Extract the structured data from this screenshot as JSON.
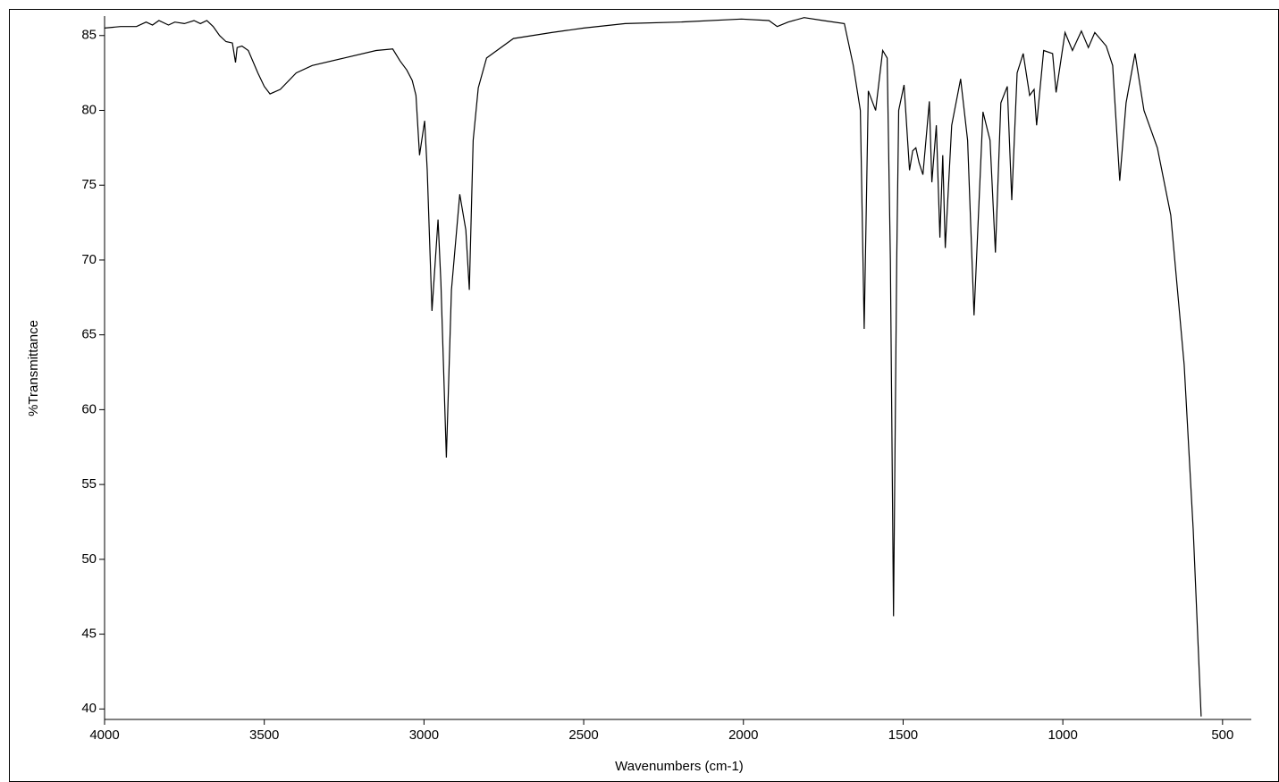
{
  "chart_data": {
    "type": "line",
    "x_label": "Wavenumbers (cm-1)",
    "y_label": "%Transmittance",
    "color": "#000000",
    "xlim": [
      4000,
      410
    ],
    "ylim": [
      39.3,
      86.3
    ],
    "xticks": [
      4000,
      3500,
      3000,
      2500,
      2000,
      1500,
      1000,
      500
    ],
    "yticks": [
      40,
      45,
      50,
      55,
      60,
      65,
      70,
      75,
      80,
      85
    ],
    "x": [
      4000,
      3950,
      3900,
      3870,
      3850,
      3830,
      3800,
      3780,
      3750,
      3720,
      3700,
      3680,
      3660,
      3640,
      3620,
      3600,
      3590,
      3585,
      3570,
      3550,
      3520,
      3500,
      3482,
      3450,
      3400,
      3350,
      3250,
      3150,
      3098,
      3075,
      3054,
      3037,
      3025,
      3014,
      2998,
      2990,
      2975,
      2956,
      2947,
      2930,
      2914,
      2888,
      2869,
      2858,
      2846,
      2830,
      2804,
      2720,
      2600,
      2500,
      2370,
      2200,
      2006,
      1920,
      1894,
      1860,
      1810,
      1750,
      1684,
      1656,
      1634,
      1622,
      1609,
      1595,
      1586,
      1564,
      1550,
      1540,
      1530,
      1520,
      1514,
      1497,
      1480,
      1470,
      1460,
      1450,
      1438,
      1418,
      1410,
      1396,
      1385,
      1376,
      1368,
      1348,
      1320,
      1298,
      1278,
      1250,
      1228,
      1211,
      1194,
      1174,
      1160,
      1143,
      1124,
      1104,
      1090,
      1082,
      1060,
      1032,
      1021,
      993,
      970,
      942,
      920,
      900,
      864,
      844,
      822,
      802,
      774,
      746,
      704,
      662,
      620,
      592,
      567
    ],
    "values": [
      85.5,
      85.6,
      85.6,
      85.9,
      85.7,
      86.0,
      85.7,
      85.9,
      85.8,
      86.0,
      85.8,
      86.0,
      85.6,
      85.0,
      84.6,
      84.5,
      83.2,
      84.2,
      84.3,
      84.0,
      82.5,
      81.6,
      81.1,
      81.4,
      82.5,
      83.0,
      83.5,
      84.0,
      84.1,
      83.3,
      82.7,
      82.0,
      81.0,
      77.0,
      79.3,
      76.0,
      66.6,
      72.7,
      68.5,
      56.8,
      68.0,
      74.4,
      72.0,
      68.0,
      78.0,
      81.5,
      83.5,
      84.8,
      85.2,
      85.5,
      85.8,
      85.9,
      86.1,
      86.0,
      85.6,
      85.9,
      86.2,
      86.0,
      85.8,
      83.0,
      80.0,
      65.4,
      81.3,
      80.5,
      80.0,
      84.0,
      83.5,
      70.0,
      46.2,
      70.0,
      80.0,
      81.7,
      76.0,
      77.3,
      77.5,
      76.5,
      75.7,
      80.6,
      75.2,
      79.0,
      71.5,
      77.0,
      70.8,
      79.0,
      82.1,
      78.0,
      66.3,
      79.9,
      78.0,
      70.5,
      80.5,
      81.6,
      74.0,
      82.5,
      83.8,
      81.0,
      81.4,
      79.0,
      84.0,
      83.8,
      81.2,
      85.2,
      84.0,
      85.3,
      84.2,
      85.2,
      84.3,
      83.0,
      75.3,
      80.5,
      83.8,
      80.0,
      77.5,
      73.0,
      63.0,
      52.0,
      39.5
    ]
  }
}
